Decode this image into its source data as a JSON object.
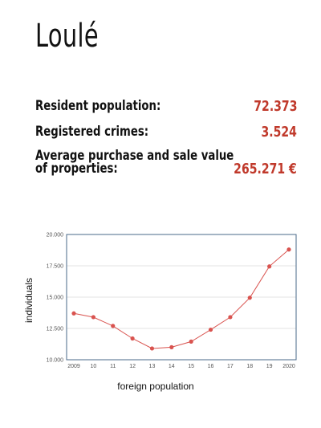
{
  "header": {
    "title": "Loulé"
  },
  "stats": [
    {
      "label": "Resident population:",
      "value": "72.373"
    },
    {
      "label": "Registered crimes:",
      "value": "3.524"
    },
    {
      "label_line1": "Average purchase and sale value",
      "label_line2": "of properties:",
      "value": "265.271 €"
    }
  ],
  "colors": {
    "accent": "#c0392b",
    "line": "#d9534f",
    "frame": "#4a6a8a"
  },
  "chart_data": {
    "type": "line",
    "x": [
      "2009",
      "10",
      "11",
      "12",
      "13",
      "14",
      "15",
      "16",
      "17",
      "18",
      "19",
      "2020"
    ],
    "series": [
      {
        "values": [
          13700,
          13400,
          12700,
          11700,
          10900,
          11000,
          11450,
          12400,
          13400,
          14950,
          17450,
          18800
        ]
      }
    ],
    "xlabel": "foreign population",
    "ylabel": "individuals",
    "ylim": [
      10000,
      20000
    ],
    "yticks": [
      "10.000",
      "12.500",
      "15.000",
      "17.500",
      "20.000"
    ],
    "grid": true,
    "legend": "none"
  }
}
